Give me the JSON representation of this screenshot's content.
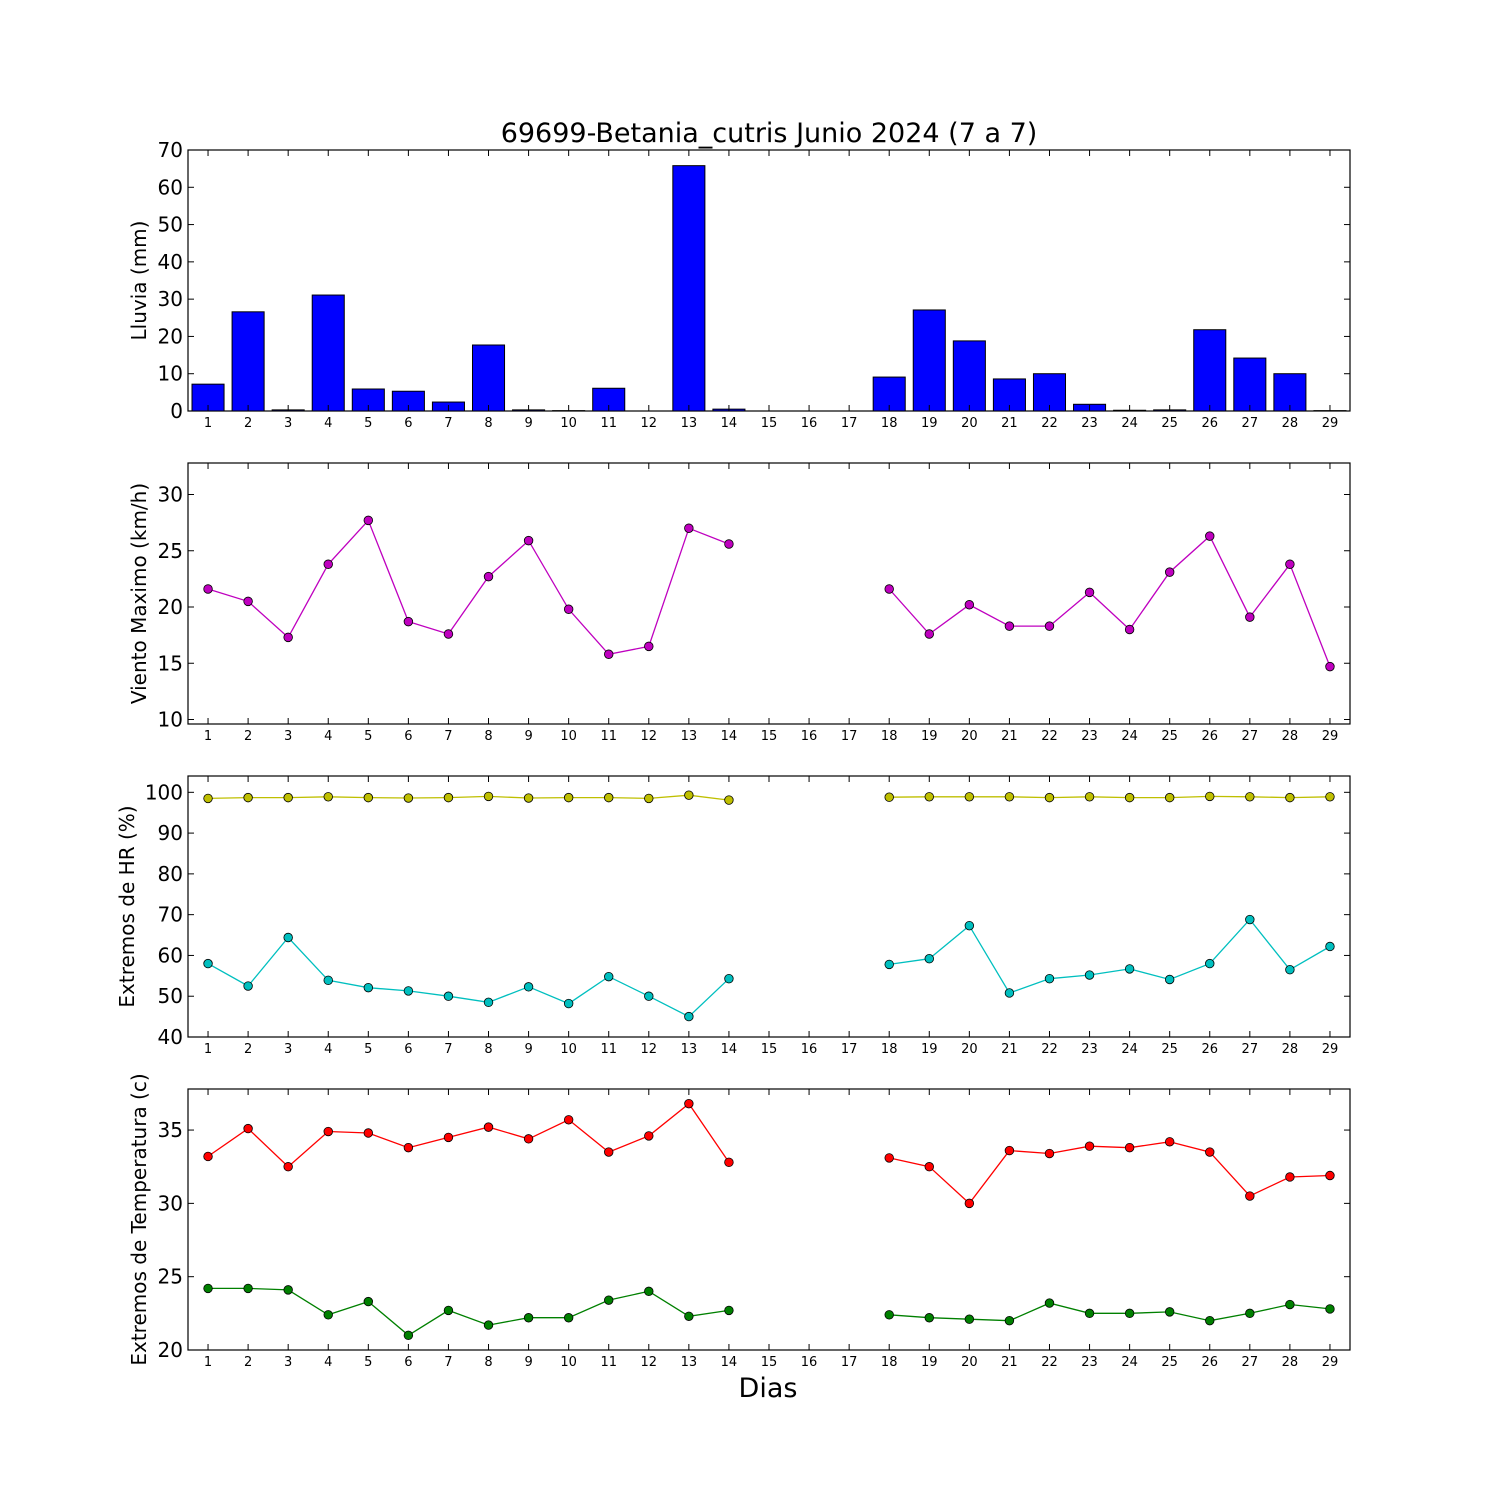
{
  "figure": {
    "title": "69699-Betania_cutris Junio 2024  (7 a 7)",
    "xlabel": "Dias"
  },
  "colors": {
    "rain": "#0000ff",
    "wind": "#bf00bf",
    "hr_max": "#bfbf00",
    "hr_min": "#00bfbf",
    "temp_max": "#ff0000",
    "temp_min": "#008000"
  },
  "chart_data": [
    {
      "type": "bar",
      "ylabel": "Lluvia (mm)",
      "x": [
        1,
        2,
        3,
        4,
        5,
        6,
        7,
        8,
        9,
        10,
        11,
        12,
        13,
        14,
        15,
        16,
        17,
        18,
        19,
        20,
        21,
        22,
        23,
        24,
        25,
        26,
        27,
        28,
        29
      ],
      "values": [
        7.2,
        26.6,
        0.3,
        31.1,
        5.9,
        5.3,
        2.4,
        17.7,
        0.3,
        0.1,
        6.1,
        0,
        65.8,
        0.5,
        null,
        null,
        null,
        9.1,
        27.1,
        18.8,
        8.6,
        10.0,
        1.8,
        0.2,
        0.3,
        21.8,
        14.2,
        10.0,
        0.1
      ],
      "ylim": [
        0,
        70
      ],
      "yticks": [
        0,
        10,
        20,
        30,
        40,
        50,
        60,
        70
      ],
      "xlim": [
        0.5,
        29.5
      ],
      "xticks": [
        1,
        2,
        3,
        4,
        5,
        6,
        7,
        8,
        9,
        10,
        11,
        12,
        13,
        14,
        15,
        16,
        17,
        18,
        19,
        20,
        21,
        22,
        23,
        24,
        25,
        26,
        27,
        28,
        29
      ],
      "grid": false,
      "series": [
        {
          "color": "#0000ff"
        }
      ]
    },
    {
      "type": "line",
      "ylabel": "Viento Maximo (km/h)",
      "x": [
        1,
        2,
        3,
        4,
        5,
        6,
        7,
        8,
        9,
        10,
        11,
        12,
        13,
        14,
        15,
        16,
        17,
        18,
        19,
        20,
        21,
        22,
        23,
        24,
        25,
        26,
        27,
        28,
        29
      ],
      "ylim": [
        9.6,
        32.8
      ],
      "yticks": [
        10,
        15,
        20,
        25,
        30
      ],
      "xlim": [
        0.5,
        29.5
      ],
      "xticks": [
        1,
        2,
        3,
        4,
        5,
        6,
        7,
        8,
        9,
        10,
        11,
        12,
        13,
        14,
        15,
        16,
        17,
        18,
        19,
        20,
        21,
        22,
        23,
        24,
        25,
        26,
        27,
        28,
        29
      ],
      "grid": false,
      "series": [
        {
          "color": "#bf00bf",
          "values": [
            21.6,
            20.5,
            17.3,
            23.8,
            27.7,
            18.7,
            17.6,
            22.7,
            25.9,
            19.8,
            15.8,
            16.5,
            27.0,
            25.6,
            null,
            null,
            null,
            21.6,
            17.6,
            20.2,
            18.3,
            18.3,
            21.3,
            18.0,
            23.1,
            26.3,
            19.1,
            23.8,
            14.7
          ]
        }
      ]
    },
    {
      "type": "line",
      "ylabel": "Extremos de HR (%)",
      "x": [
        1,
        2,
        3,
        4,
        5,
        6,
        7,
        8,
        9,
        10,
        11,
        12,
        13,
        14,
        15,
        16,
        17,
        18,
        19,
        20,
        21,
        22,
        23,
        24,
        25,
        26,
        27,
        28,
        29
      ],
      "ylim": [
        40,
        104
      ],
      "yticks": [
        40,
        50,
        60,
        70,
        80,
        90,
        100
      ],
      "xlim": [
        0.5,
        29.5
      ],
      "xticks": [
        1,
        2,
        3,
        4,
        5,
        6,
        7,
        8,
        9,
        10,
        11,
        12,
        13,
        14,
        15,
        16,
        17,
        18,
        19,
        20,
        21,
        22,
        23,
        24,
        25,
        26,
        27,
        28,
        29
      ],
      "grid": false,
      "series": [
        {
          "color": "#bfbf00",
          "values": [
            98.5,
            98.7,
            98.7,
            98.9,
            98.7,
            98.6,
            98.7,
            99.0,
            98.6,
            98.7,
            98.7,
            98.5,
            99.3,
            98.1,
            null,
            null,
            null,
            98.8,
            98.9,
            98.9,
            98.9,
            98.7,
            98.9,
            98.7,
            98.7,
            99.0,
            98.9,
            98.7,
            98.9
          ]
        },
        {
          "color": "#00bfbf",
          "values": [
            58.0,
            52.5,
            64.4,
            53.9,
            52.1,
            51.3,
            50.0,
            48.5,
            52.3,
            48.2,
            54.8,
            50.0,
            45.0,
            54.3,
            null,
            null,
            null,
            57.8,
            59.2,
            67.3,
            50.8,
            54.3,
            55.2,
            56.7,
            54.1,
            58.0,
            68.8,
            56.5,
            62.2
          ]
        }
      ]
    },
    {
      "type": "line",
      "ylabel": "Extremos de Temperatura (c)",
      "x": [
        1,
        2,
        3,
        4,
        5,
        6,
        7,
        8,
        9,
        10,
        11,
        12,
        13,
        14,
        15,
        16,
        17,
        18,
        19,
        20,
        21,
        22,
        23,
        24,
        25,
        26,
        27,
        28,
        29
      ],
      "ylim": [
        20,
        37.8
      ],
      "yticks": [
        20,
        25,
        30,
        35
      ],
      "xlim": [
        0.5,
        29.5
      ],
      "xticks": [
        1,
        2,
        3,
        4,
        5,
        6,
        7,
        8,
        9,
        10,
        11,
        12,
        13,
        14,
        15,
        16,
        17,
        18,
        19,
        20,
        21,
        22,
        23,
        24,
        25,
        26,
        27,
        28,
        29
      ],
      "grid": false,
      "series": [
        {
          "color": "#ff0000",
          "values": [
            33.2,
            35.1,
            32.5,
            34.9,
            34.8,
            33.8,
            34.5,
            35.2,
            34.4,
            35.7,
            33.5,
            34.6,
            36.8,
            32.8,
            null,
            null,
            null,
            33.1,
            32.5,
            30.0,
            33.6,
            33.4,
            33.9,
            33.8,
            34.2,
            33.5,
            30.5,
            31.8,
            31.9
          ]
        },
        {
          "color": "#008000",
          "values": [
            24.2,
            24.2,
            24.1,
            22.4,
            23.3,
            21.0,
            22.7,
            21.7,
            22.2,
            22.2,
            23.4,
            24.0,
            22.3,
            22.7,
            null,
            null,
            null,
            22.4,
            22.2,
            22.1,
            22.0,
            23.2,
            22.5,
            22.5,
            22.6,
            22.0,
            22.5,
            23.1,
            22.8
          ]
        }
      ]
    }
  ]
}
